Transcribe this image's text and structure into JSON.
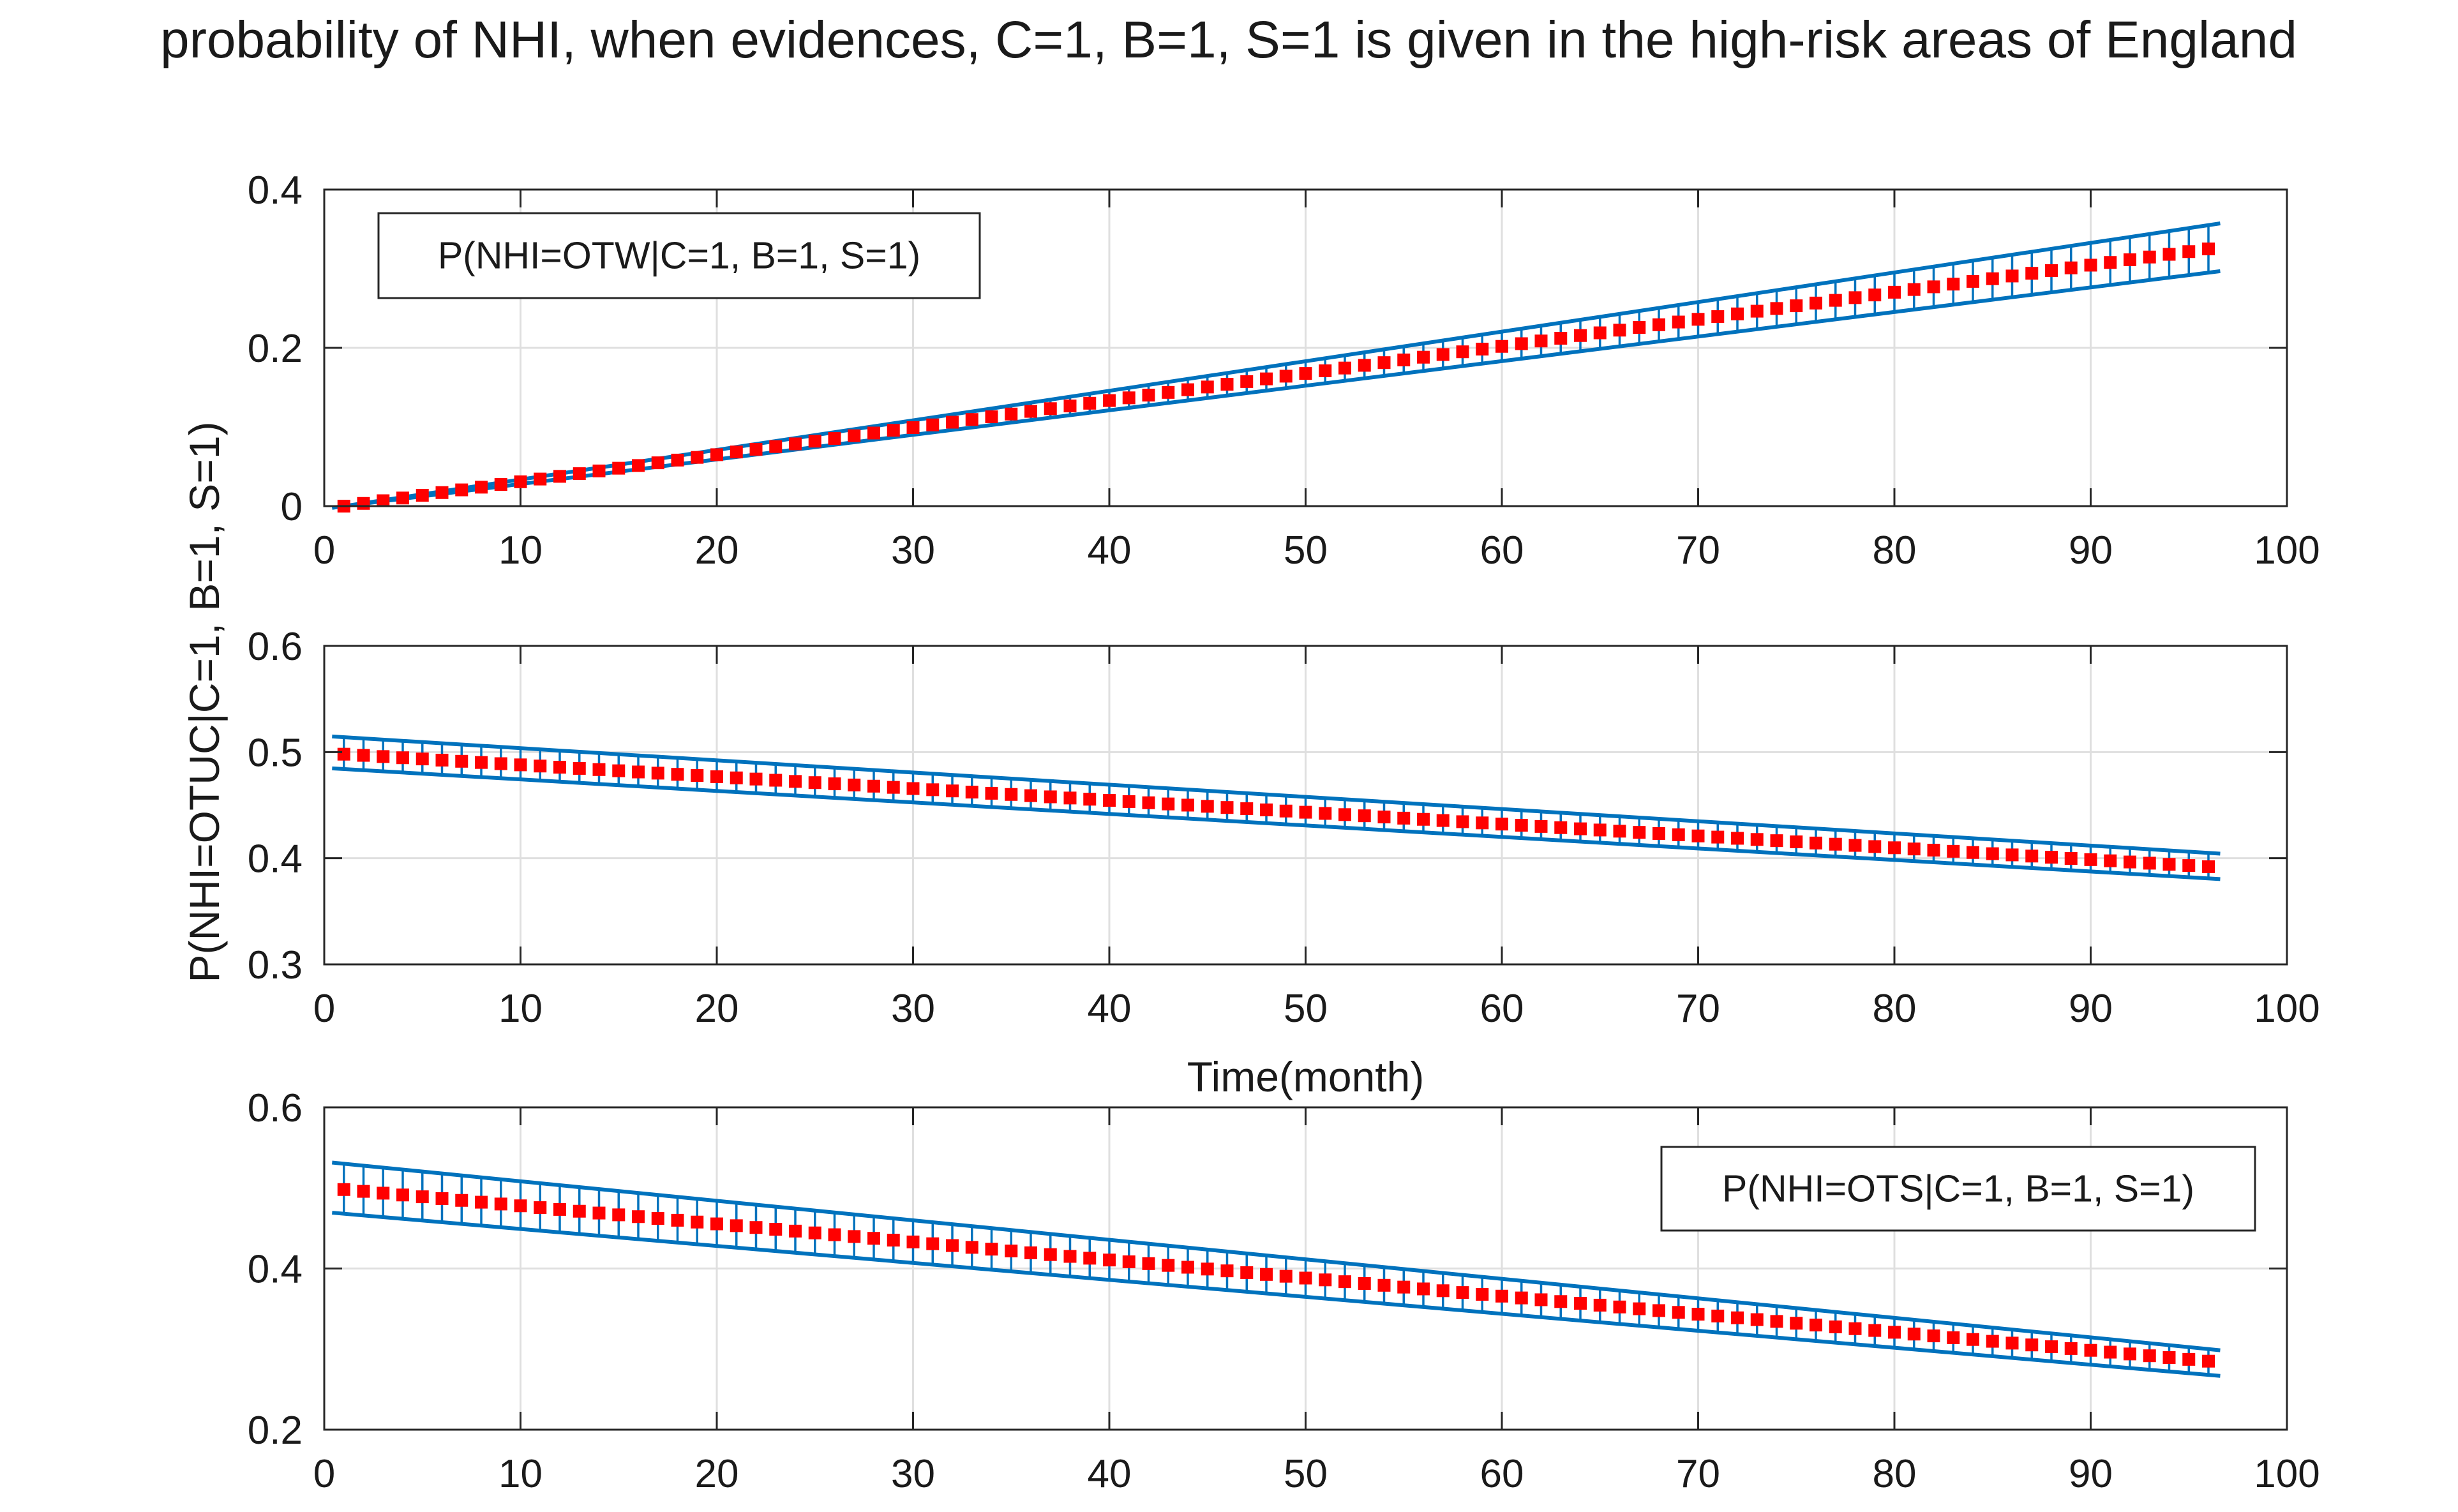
{
  "figure_title": "probability of NHI, when evidences, C=1, B=1, S=1 is given in the high-risk areas of England",
  "shared_ylabel": "P(NHI=OTUC|C=1, B=1, S=1)",
  "colors": {
    "band": "#0072BD",
    "marker": "#FF0000",
    "grid": "#DFDFDF",
    "axis": "#262626"
  },
  "chart_data": [
    {
      "type": "line",
      "subplot": "top",
      "title": "",
      "legend": "P(NHI=OTW|C=1, B=1, S=1)",
      "legend_position": "top-left",
      "xlabel": "",
      "ylabel": "",
      "xlim": [
        0,
        100
      ],
      "ylim": [
        0,
        0.4
      ],
      "xticks": [
        0,
        10,
        20,
        30,
        40,
        50,
        60,
        70,
        80,
        90,
        100
      ],
      "yticks": [
        "0",
        "0.2",
        "0.4"
      ],
      "x_range": [
        1,
        96
      ],
      "band_start": [
        0.0,
        0.0
      ],
      "band_end": [
        0.295,
        0.355
      ],
      "series": [
        {
          "name": "mean",
          "start": 0.0,
          "end": 0.325,
          "marker": "red square"
        }
      ],
      "grid": true
    },
    {
      "type": "line",
      "subplot": "middle",
      "title": "",
      "legend": "",
      "xlabel": "Time(month)",
      "ylabel": "",
      "xlim": [
        0,
        100
      ],
      "ylim": [
        0.3,
        0.6
      ],
      "xticks": [
        0,
        10,
        20,
        30,
        40,
        50,
        60,
        70,
        80,
        90,
        100
      ],
      "yticks": [
        "0.3",
        "0.4",
        "0.5",
        "0.6"
      ],
      "x_range": [
        1,
        96
      ],
      "band_start": [
        0.484,
        0.514
      ],
      "band_end": [
        0.381,
        0.405
      ],
      "series": [
        {
          "name": "mean",
          "start": 0.498,
          "end": 0.392,
          "marker": "red square"
        }
      ],
      "grid": true
    },
    {
      "type": "line",
      "subplot": "bottom",
      "title": "",
      "legend": "P(NHI=OTS|C=1, B=1, S=1)",
      "legend_position": "top-right",
      "xlabel": "",
      "ylabel": "",
      "xlim": [
        0,
        100
      ],
      "ylim": [
        0.2,
        0.6
      ],
      "xticks": [
        0,
        10,
        20,
        30,
        40,
        50,
        60,
        70,
        80,
        90,
        100
      ],
      "yticks": [
        "0.2",
        "0.4",
        "0.6"
      ],
      "x_range": [
        1,
        96
      ],
      "band_start": [
        0.468,
        0.53
      ],
      "band_end": [
        0.268,
        0.3
      ],
      "series": [
        {
          "name": "mean",
          "start": 0.498,
          "end": 0.285,
          "marker": "red square"
        }
      ],
      "grid": true
    }
  ]
}
